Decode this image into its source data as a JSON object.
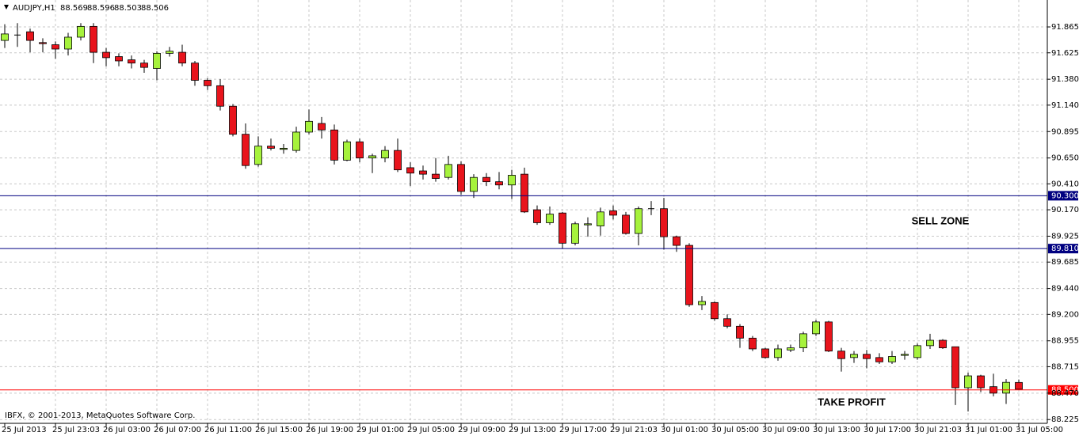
{
  "chart_data": {
    "type": "candlestick",
    "title": "AUDJPY,H1",
    "copyright": "IBFX, © 2001-2013, MetaQuotes Software Corp.",
    "annotations": [
      "SELL ZONE",
      "TAKE PROFIT"
    ],
    "categories": [
      "25 Jul 2013",
      null,
      null,
      null,
      "25 Jul 23:03",
      null,
      null,
      null,
      "26 Jul 03:00",
      null,
      null,
      null,
      "26 Jul 07:00",
      null,
      null,
      null,
      "26 Jul 11:00",
      null,
      null,
      null,
      "26 Jul 15:00",
      null,
      null,
      null,
      "26 Jul 19:00",
      null,
      null,
      null,
      "29 Jul 01:00",
      null,
      null,
      null,
      "29 Jul 05:00",
      null,
      null,
      null,
      "29 Jul 09:00",
      null,
      null,
      null,
      "29 Jul 13:00",
      null,
      null,
      null,
      "29 Jul 17:00",
      null,
      null,
      null,
      "29 Jul 21:03",
      null,
      null,
      null,
      "30 Jul 01:00",
      null,
      null,
      null,
      "30 Jul 05:00",
      null,
      null,
      null,
      "30 Jul 09:00",
      null,
      null,
      null,
      "30 Jul 13:00",
      null,
      null,
      null,
      "30 Jul 17:00",
      null,
      null,
      null,
      "30 Jul 21:03",
      null,
      null,
      null,
      "31 Jul 01:00",
      null,
      null,
      null,
      "31 Jul 05:00"
    ],
    "open": [
      91.74,
      91.79,
      91.82,
      91.72,
      91.7,
      91.66,
      91.77,
      91.87,
      91.63,
      91.59,
      91.56,
      91.53,
      91.48,
      91.62,
      91.63,
      91.53,
      91.37,
      91.32,
      91.13,
      90.87,
      90.59,
      90.76,
      90.73,
      90.72,
      90.89,
      90.97,
      90.91,
      90.63,
      90.8,
      90.65,
      90.65,
      90.72,
      90.56,
      90.53,
      90.5,
      90.47,
      90.59,
      90.34,
      90.47,
      90.43,
      90.4,
      90.5,
      90.17,
      90.05,
      90.14,
      89.86,
      90.03,
      90.02,
      90.16,
      90.12,
      89.95,
      90.18,
      90.18,
      89.92,
      89.84,
      89.29,
      89.31,
      89.16,
      89.09,
      88.98,
      88.88,
      88.8,
      88.87,
      88.89,
      89.02,
      89.13,
      88.86,
      88.8,
      88.83,
      88.8,
      88.76,
      88.82,
      88.8,
      88.91,
      88.96,
      88.9,
      88.52,
      88.63,
      88.53,
      88.47,
      88.569
    ],
    "high": [
      91.89,
      91.9,
      91.85,
      91.76,
      91.73,
      91.81,
      91.9,
      91.9,
      91.67,
      91.62,
      91.6,
      91.56,
      91.64,
      91.68,
      91.7,
      91.55,
      91.39,
      91.38,
      91.15,
      90.97,
      90.85,
      90.83,
      90.78,
      90.94,
      91.1,
      91.03,
      90.96,
      90.82,
      90.83,
      90.69,
      90.76,
      90.83,
      90.61,
      90.58,
      90.65,
      90.67,
      90.62,
      90.5,
      90.51,
      90.52,
      90.54,
      90.56,
      90.21,
      90.2,
      90.15,
      90.06,
      90.1,
      90.19,
      90.21,
      90.15,
      90.2,
      90.25,
      90.28,
      89.93,
      89.86,
      89.37,
      89.32,
      89.2,
      89.11,
      89.0,
      88.89,
      88.92,
      88.92,
      89.04,
      89.15,
      89.14,
      88.89,
      88.86,
      88.87,
      88.84,
      88.86,
      88.86,
      88.93,
      89.02,
      88.97,
      88.9,
      88.66,
      88.64,
      88.65,
      88.6,
      88.596
    ],
    "low": [
      91.67,
      91.68,
      91.63,
      91.63,
      91.57,
      91.6,
      91.74,
      91.53,
      91.5,
      91.5,
      91.48,
      91.44,
      91.37,
      91.59,
      91.5,
      91.32,
      91.28,
      91.09,
      90.85,
      90.55,
      90.57,
      90.72,
      90.69,
      90.7,
      90.87,
      90.83,
      90.59,
      90.62,
      90.61,
      90.51,
      90.61,
      90.52,
      90.39,
      90.45,
      90.43,
      90.45,
      90.31,
      90.28,
      90.39,
      90.36,
      90.27,
      90.14,
      90.03,
      90.03,
      89.81,
      89.84,
      89.92,
      89.93,
      90.08,
      89.94,
      89.84,
      90.12,
      89.8,
      89.78,
      89.27,
      89.24,
      89.14,
      89.07,
      88.89,
      88.86,
      88.79,
      88.77,
      88.85,
      88.85,
      89.0,
      88.85,
      88.67,
      88.75,
      88.7,
      88.74,
      88.74,
      88.78,
      88.78,
      88.88,
      88.88,
      88.36,
      88.3,
      88.48,
      88.44,
      88.37,
      88.503
    ],
    "close": [
      91.8,
      91.79,
      91.74,
      91.71,
      91.66,
      91.77,
      91.87,
      91.63,
      91.58,
      91.55,
      91.53,
      91.49,
      91.62,
      91.64,
      91.53,
      91.37,
      91.32,
      91.13,
      90.87,
      90.58,
      90.76,
      90.74,
      90.74,
      90.89,
      90.99,
      90.91,
      90.63,
      90.8,
      90.65,
      90.67,
      90.72,
      90.54,
      90.51,
      90.5,
      90.46,
      90.59,
      90.34,
      90.47,
      90.43,
      90.4,
      90.49,
      90.15,
      90.05,
      90.13,
      89.86,
      90.04,
      90.04,
      90.15,
      90.12,
      89.95,
      90.18,
      90.18,
      89.92,
      89.84,
      89.29,
      89.32,
      89.16,
      89.09,
      88.98,
      88.88,
      88.8,
      88.88,
      88.89,
      89.02,
      89.13,
      88.86,
      88.79,
      88.83,
      88.79,
      88.76,
      88.81,
      88.83,
      88.91,
      88.96,
      88.89,
      88.52,
      88.63,
      88.52,
      88.47,
      88.57,
      88.506
    ],
    "up_color": "#a6f23c",
    "down_color": "#e8141c",
    "ylim": [
      88.19,
      92.1
    ],
    "yticks": [
      91.865,
      91.625,
      {
        "value": 91.38,
        "label": "91.380"
      },
      {
        "value": 91.14,
        "label": "91.140"
      },
      90.895,
      {
        "value": 90.65,
        "label": "90.650"
      },
      {
        "value": 90.41,
        "label": "90.410"
      },
      {
        "value": 90.17,
        "label": "90.170"
      },
      89.925,
      89.685,
      {
        "value": 89.44,
        "label": "89.440"
      },
      {
        "value": 89.2,
        "label": "89.200"
      },
      88.955,
      88.715,
      {
        "value": 88.47,
        "label": "88.470"
      },
      88.225
    ],
    "grid": true,
    "levels": [
      {
        "value": 90.3,
        "label": "90.300",
        "color": "#000080"
      },
      {
        "value": 89.81,
        "label": "89.810",
        "color": "#000080"
      },
      {
        "value": 88.5,
        "label": "88.500",
        "color": "#ff0000"
      }
    ]
  }
}
